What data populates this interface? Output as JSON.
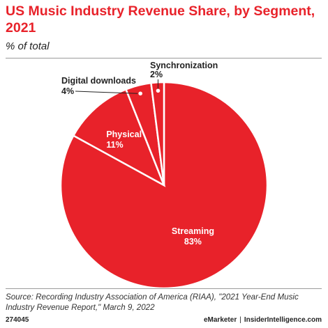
{
  "header": {
    "title": "US Music Industry Revenue Share, by Segment, 2021",
    "subtitle": "% of total"
  },
  "chart_data": {
    "type": "pie",
    "title": "US Music Industry Revenue Share, by Segment, 2021",
    "unit": "% of total",
    "categories": [
      "Streaming",
      "Physical",
      "Digital downloads",
      "Synchronization"
    ],
    "values": [
      83,
      11,
      4,
      2
    ],
    "labels": [
      "83%",
      "11%",
      "4%",
      "2%"
    ],
    "label_placement": [
      "inside",
      "inside",
      "outside",
      "outside"
    ],
    "color": "#e8222a",
    "separator_color": "#ffffff"
  },
  "footer": {
    "source": "Source: Recording Industry Association of America (RIAA), \"2021 Year-End Music Industry Revenue Report,\" March 9, 2022",
    "chart_id": "274045",
    "brand_1": "eMarketer",
    "separator": "|",
    "brand_2": "InsiderIntelligence.com"
  }
}
